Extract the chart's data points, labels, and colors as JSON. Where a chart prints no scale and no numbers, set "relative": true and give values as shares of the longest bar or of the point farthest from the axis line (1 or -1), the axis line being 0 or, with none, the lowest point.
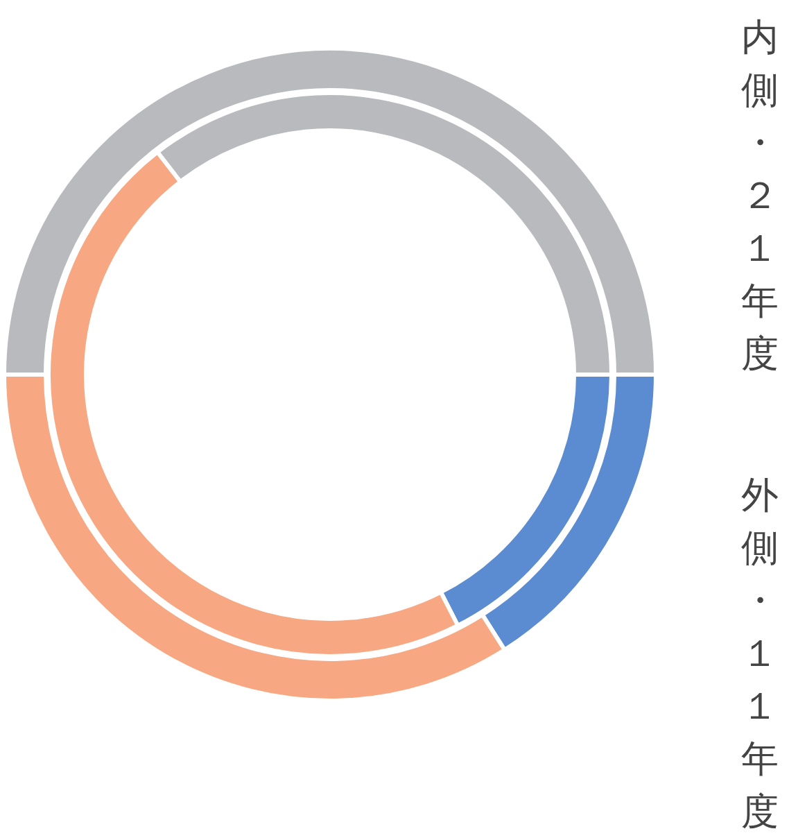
{
  "chart_data": {
    "type": "donut",
    "relative": true,
    "categories": [
      null,
      null,
      null
    ],
    "colors": [
      "#5b8bd0",
      "#f7a882",
      "#b9babe"
    ],
    "series": [
      {
        "values": [
          16,
          34,
          50
        ]
      },
      {
        "values": [
          17.5,
          47,
          35.5
        ]
      }
    ],
    "annotations": [
      "内側・２１年度",
      "外側・１１年度"
    ]
  }
}
